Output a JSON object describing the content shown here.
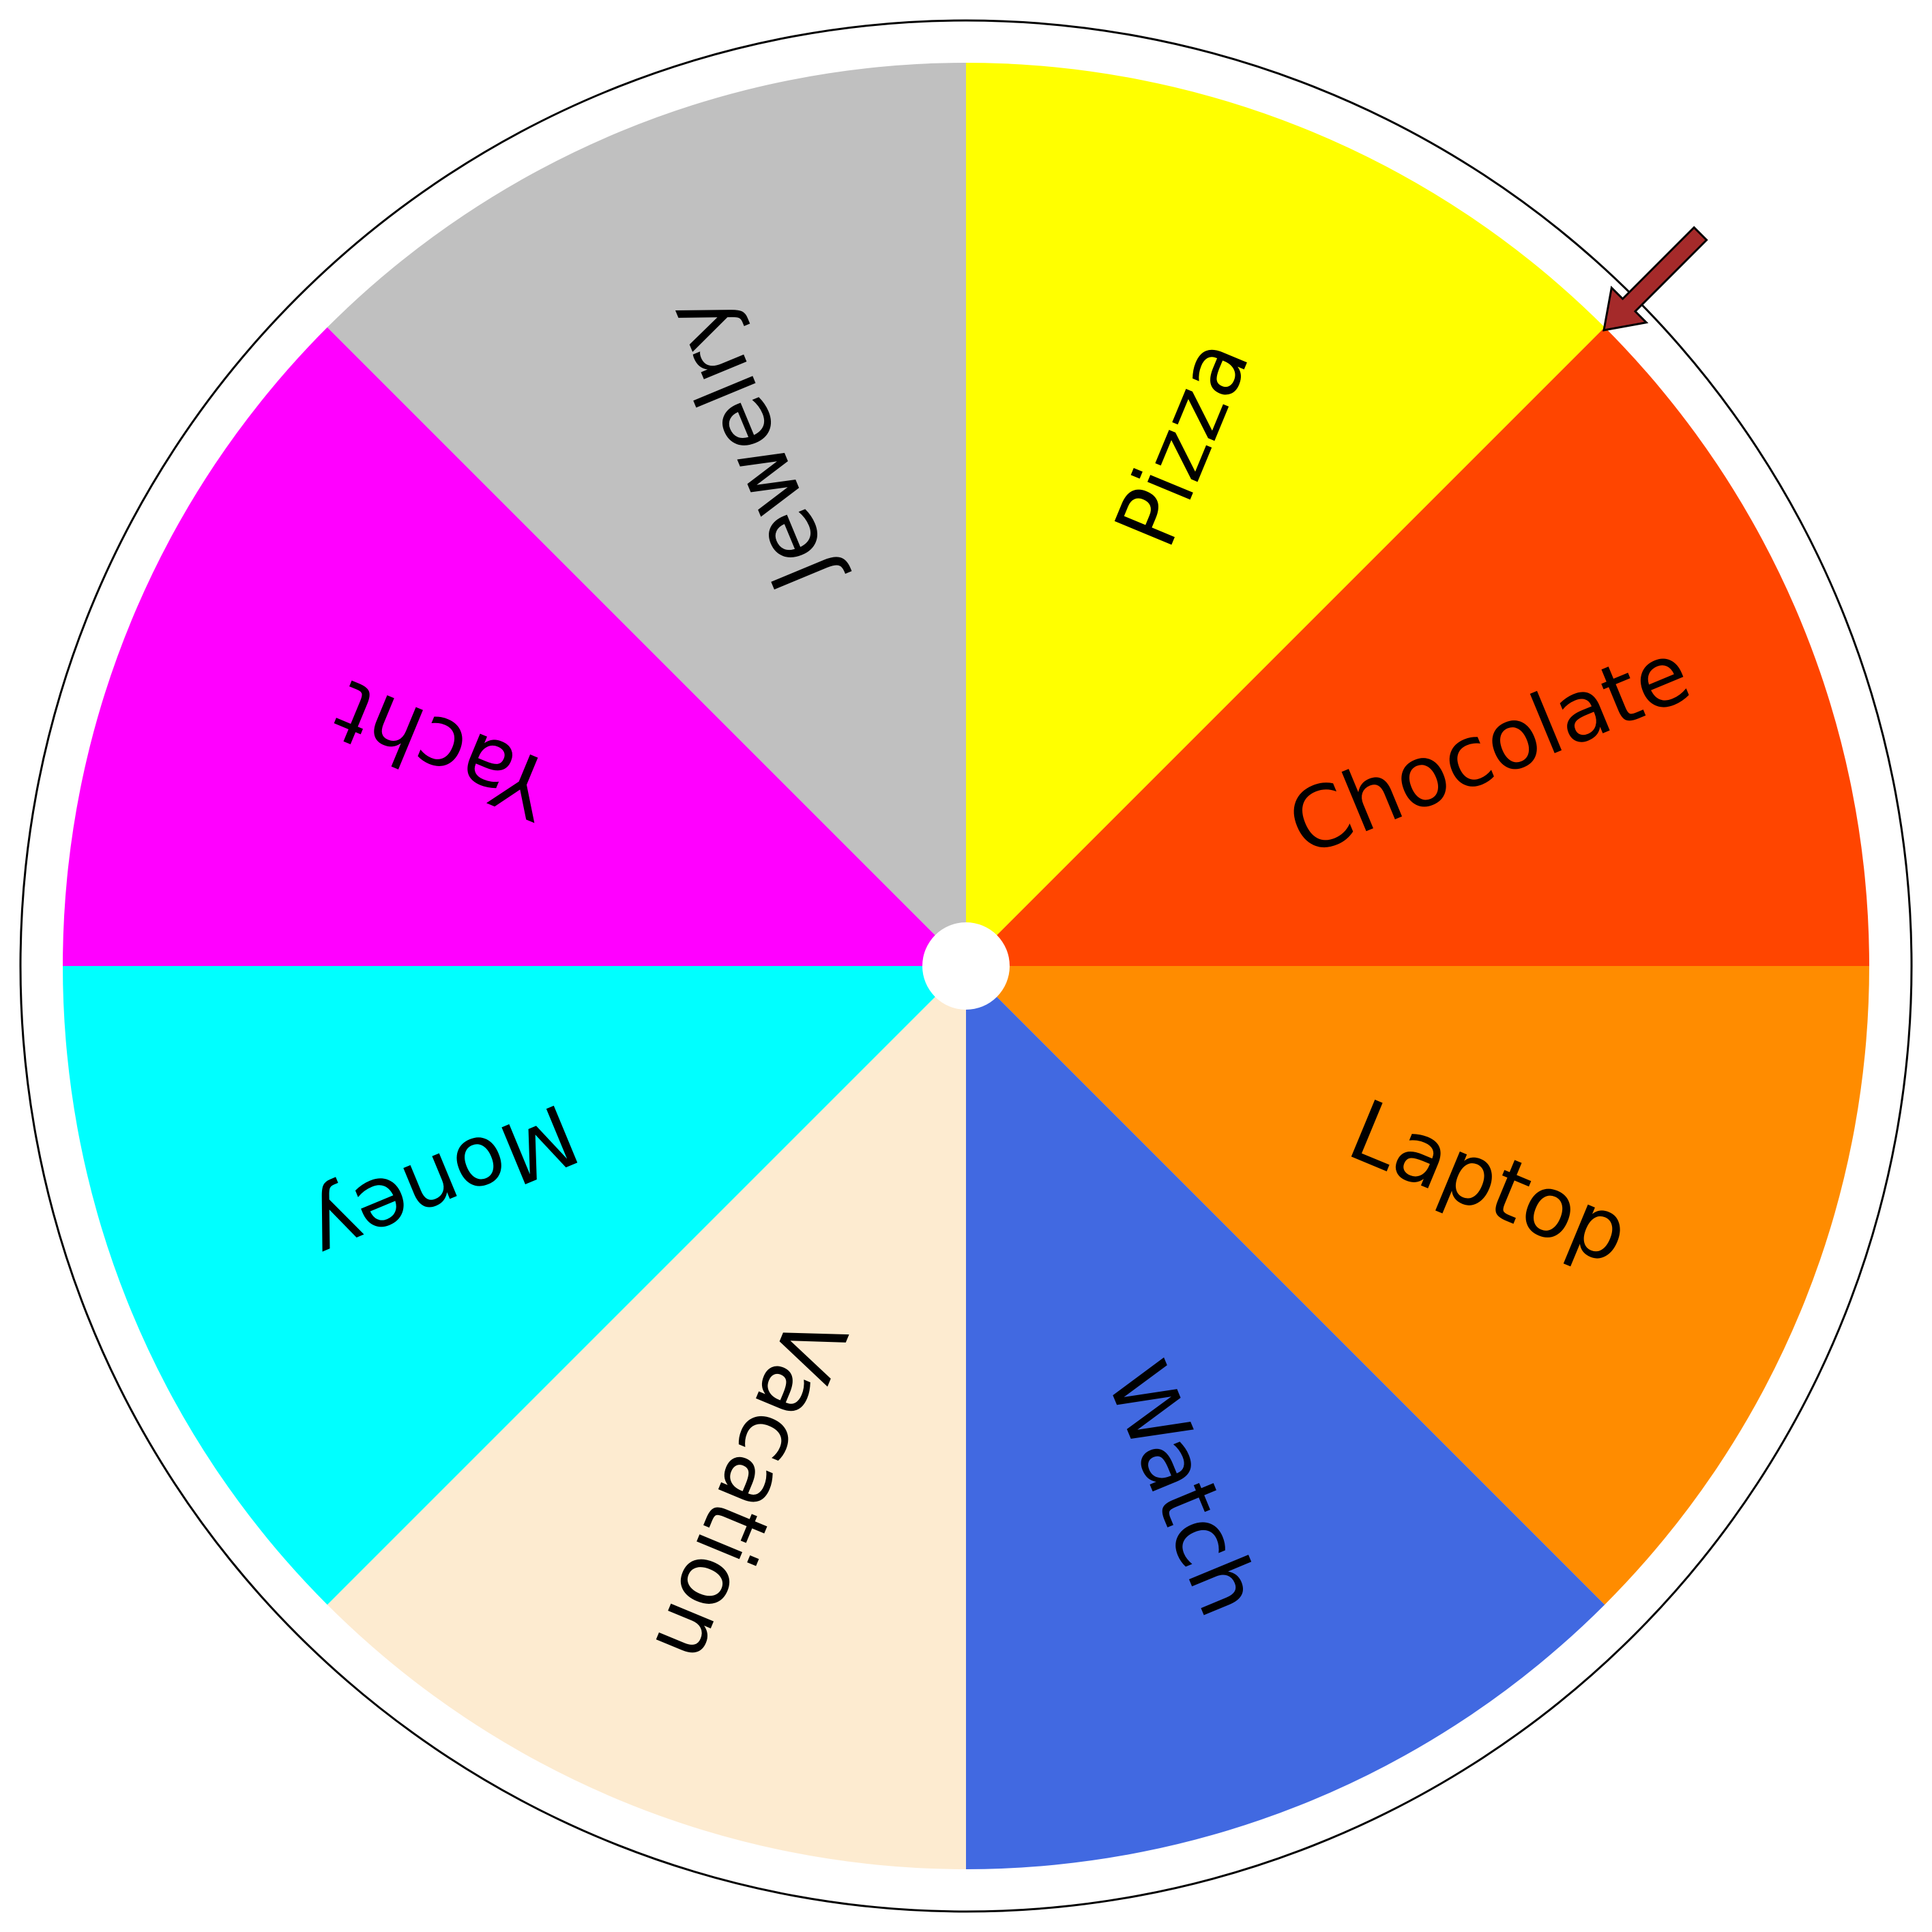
{
  "wheel": {
    "segments": [
      {
        "label": "Pizza",
        "color": "#FFFF00"
      },
      {
        "label": "Chocolate",
        "color": "#FF4500"
      },
      {
        "label": "Laptop",
        "color": "#FF8C00"
      },
      {
        "label": "Watch",
        "color": "#4169E1"
      },
      {
        "label": "Vacation",
        "color": "#FDEBD0"
      },
      {
        "label": "Money",
        "color": "#00FFFF"
      },
      {
        "label": "Yacht",
        "color": "#FF00FF"
      },
      {
        "label": "Jewelry",
        "color": "#C0C0C0"
      }
    ],
    "rim_color": "#FFFFFF",
    "outline_color": "#000000",
    "hub_color": "#FFFFFF",
    "pointer": {
      "icon": "arrow-pointer-icon",
      "color": "#A52A2A",
      "points_to_boundary": [
        "Pizza",
        "Chocolate"
      ]
    }
  }
}
